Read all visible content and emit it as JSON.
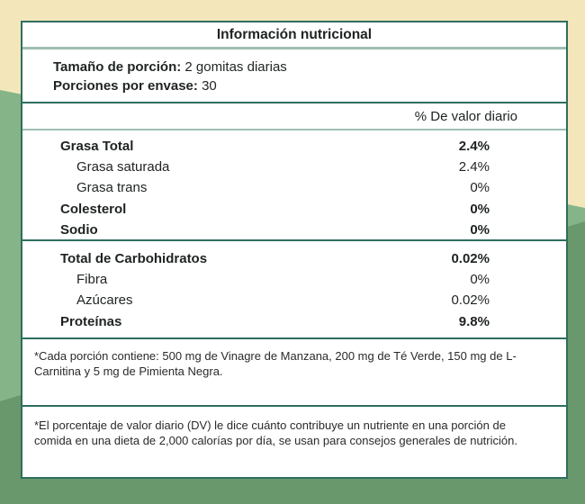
{
  "colors": {
    "background_beige": "#f3e6bb",
    "background_light_green": "#84b488",
    "background_dark_green": "#68986b",
    "panel_border": "#2e6e60",
    "divider_light": "#9dc0b1",
    "text": "#1e2321"
  },
  "label": {
    "title": "Información nutricional",
    "serving": {
      "size_label": "Tamaño de porción:",
      "size_value": " 2 gomitas diarias",
      "per_container_label": "Porciones por envase:",
      "per_container_value": " 30"
    },
    "dv_header": "% De valor diario",
    "sections": [
      {
        "rows": [
          {
            "name": "Grasa Total",
            "value": "2.4%"
          },
          {
            "name": "Grasa saturada",
            "value": "2.4%"
          },
          {
            "name": "Grasa trans",
            "value": "0%"
          },
          {
            "name": "Colesterol",
            "value": "0%"
          },
          {
            "name": "Sodio",
            "value": "0%"
          }
        ]
      },
      {
        "rows": [
          {
            "name": "Total de Carbohidratos",
            "value": "0.02%"
          },
          {
            "name": "Fibra",
            "value": "0%"
          },
          {
            "name": "Azúcares",
            "value": "0.02%"
          },
          {
            "name": "Proteínas",
            "value": "9.8%"
          }
        ]
      }
    ],
    "footnotes": [
      "*Cada porción contiene: 500 mg de Vinagre de Manzana, 200 mg de Té Verde, 150 mg de L-Carnitina y 5 mg de Pimienta Negra.",
      "*El porcentaje de valor diario (DV) le dice cuánto contribuye un nutriente en una porción de comida en una dieta de 2,000 calorías por día, se usan para consejos generales de nutrición."
    ]
  }
}
